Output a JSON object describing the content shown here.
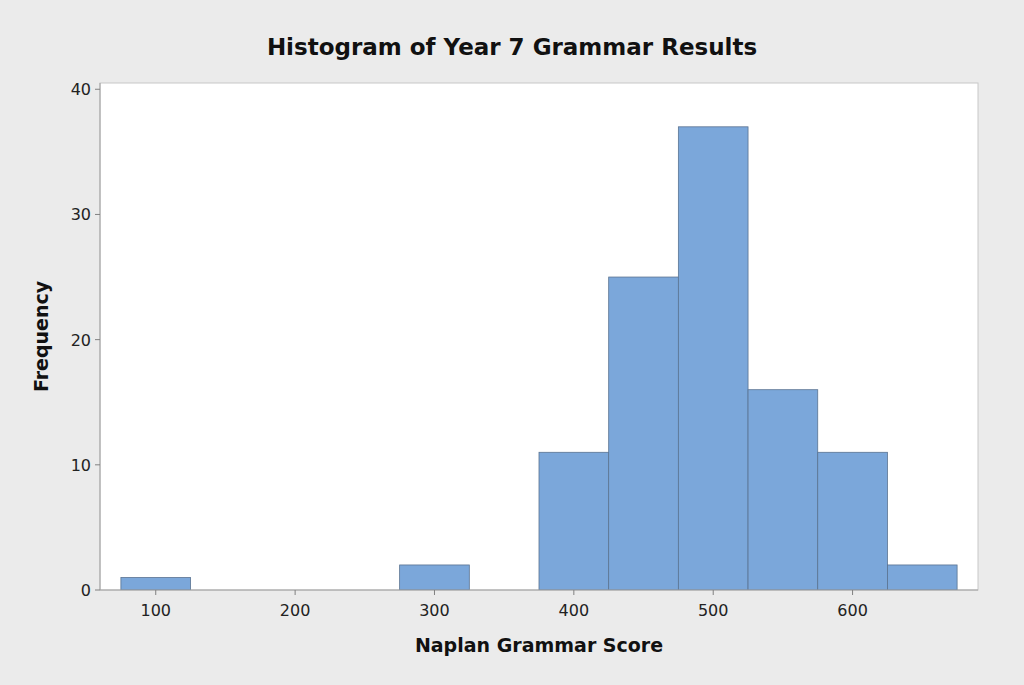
{
  "chart_data": {
    "type": "histogram",
    "title": "Histogram of Year 7 Grammar Results",
    "x_label": "Naplan Grammar Score",
    "y_label": "Frequency",
    "bins": [
      75,
      125,
      175,
      225,
      275,
      325,
      375,
      425,
      475,
      525,
      575,
      625,
      675
    ],
    "values": [
      1,
      0,
      0,
      0,
      2,
      0,
      11,
      25,
      37,
      16,
      11,
      2
    ],
    "color": "#7ba7da",
    "xlim": [
      60,
      690
    ],
    "xticks": [
      100,
      200,
      300,
      400,
      500,
      600
    ],
    "ylim": [
      0,
      40.5
    ],
    "yticks": [
      0,
      10,
      20,
      30,
      40
    ],
    "grid": false
  }
}
